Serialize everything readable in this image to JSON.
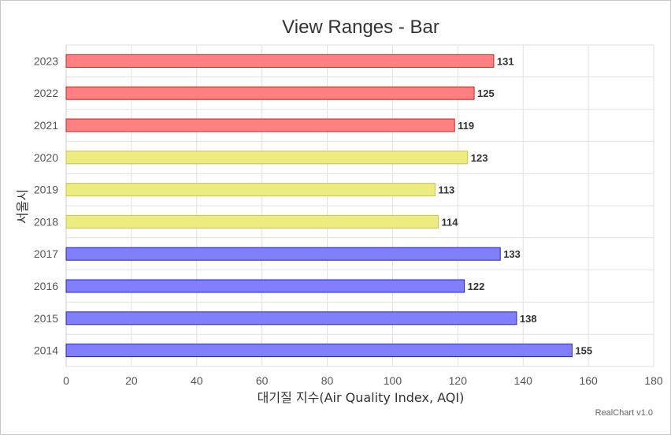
{
  "chart_data": {
    "type": "bar",
    "orientation": "horizontal",
    "title": "View Ranges - Bar",
    "xlabel": "대기질 지수(Air Quality Index, AQI)",
    "ylabel": "서울시",
    "categories": [
      "2014",
      "2015",
      "2016",
      "2017",
      "2018",
      "2019",
      "2020",
      "2021",
      "2022",
      "2023"
    ],
    "values": [
      155,
      138,
      122,
      133,
      114,
      113,
      123,
      119,
      125,
      131
    ],
    "xlim": [
      0,
      180
    ],
    "xticks": [
      "0",
      "20",
      "40",
      "60",
      "80",
      "100",
      "120",
      "140",
      "160",
      "180"
    ],
    "grid": true,
    "ranges": [
      {
        "from": "2014",
        "to": "2017",
        "fill": "#8080ff",
        "stroke": "#2020d0"
      },
      {
        "from": "2018",
        "to": "2020",
        "fill": "#ecec80",
        "stroke": "#c8c83c"
      },
      {
        "from": "2021",
        "to": "2023",
        "fill": "#ff8080",
        "stroke": "#d02020"
      }
    ]
  },
  "credit": "RealChart v1.0"
}
